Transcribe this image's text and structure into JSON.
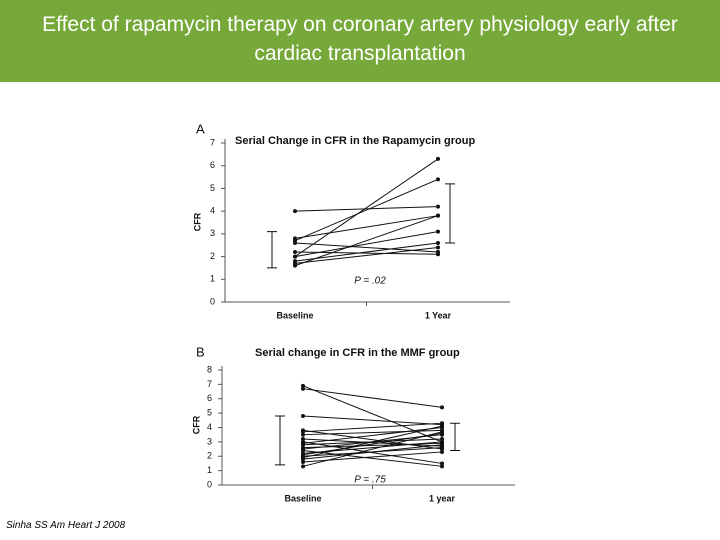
{
  "slide": {
    "title": "Effect of rapamycin therapy on coronary artery physiology early after cardiac transplantation",
    "citation": "Sinha SS Am Heart J 2008"
  },
  "chart_data": [
    {
      "type": "line",
      "panel": "A",
      "title": "Serial Change in CFR in the Rapamycin group",
      "ylabel": "CFR",
      "categories": [
        "Baseline",
        "1 Year"
      ],
      "ylim": [
        0,
        7
      ],
      "yticks": [
        0,
        1,
        2,
        3,
        4,
        5,
        6,
        7
      ],
      "color": "#111111",
      "annotation": "P = .02",
      "intervals": [
        [
          1.5,
          3.1
        ],
        [
          2.6,
          5.2
        ]
      ],
      "series": [
        {
          "values": [
            4.0,
            4.2
          ]
        },
        {
          "values": [
            2.0,
            6.3
          ]
        },
        {
          "values": [
            2.7,
            5.4
          ]
        },
        {
          "values": [
            2.8,
            3.8
          ]
        },
        {
          "values": [
            1.6,
            3.8
          ]
        },
        {
          "values": [
            2.6,
            2.2
          ]
        },
        {
          "values": [
            2.0,
            3.1
          ]
        },
        {
          "values": [
            1.8,
            2.6
          ]
        },
        {
          "values": [
            1.7,
            2.4
          ]
        },
        {
          "values": [
            2.2,
            2.1
          ]
        }
      ]
    },
    {
      "type": "line",
      "panel": "B",
      "title": "Serial change in CFR in the MMF group",
      "ylabel": "CFR",
      "categories": [
        "Baseline",
        "1 year"
      ],
      "ylim": [
        0,
        8
      ],
      "yticks": [
        0,
        1,
        2,
        3,
        4,
        5,
        6,
        7,
        8
      ],
      "color": "#111111",
      "annotation": "P = .75",
      "intervals": [
        [
          1.4,
          4.8
        ],
        [
          2.4,
          4.3
        ]
      ],
      "series": [
        {
          "values": [
            6.9,
            3.0
          ]
        },
        {
          "values": [
            6.7,
            5.4
          ]
        },
        {
          "values": [
            4.8,
            4.2
          ]
        },
        {
          "values": [
            3.8,
            2.5
          ]
        },
        {
          "values": [
            3.7,
            4.3
          ]
        },
        {
          "values": [
            3.5,
            3.8
          ]
        },
        {
          "values": [
            3.0,
            1.5
          ]
        },
        {
          "values": [
            2.9,
            4.0
          ]
        },
        {
          "values": [
            2.8,
            3.2
          ]
        },
        {
          "values": [
            2.6,
            2.9
          ]
        },
        {
          "values": [
            2.5,
            3.5
          ]
        },
        {
          "values": [
            2.4,
            1.3
          ]
        },
        {
          "values": [
            2.2,
            3.0
          ]
        },
        {
          "values": [
            2.0,
            2.6
          ]
        },
        {
          "values": [
            1.9,
            4.1
          ]
        },
        {
          "values": [
            1.8,
            2.8
          ]
        },
        {
          "values": [
            1.6,
            2.3
          ]
        },
        {
          "values": [
            1.3,
            3.7
          ]
        },
        {
          "values": [
            2.1,
            3.6
          ]
        },
        {
          "values": [
            3.2,
            2.7
          ]
        }
      ]
    }
  ]
}
